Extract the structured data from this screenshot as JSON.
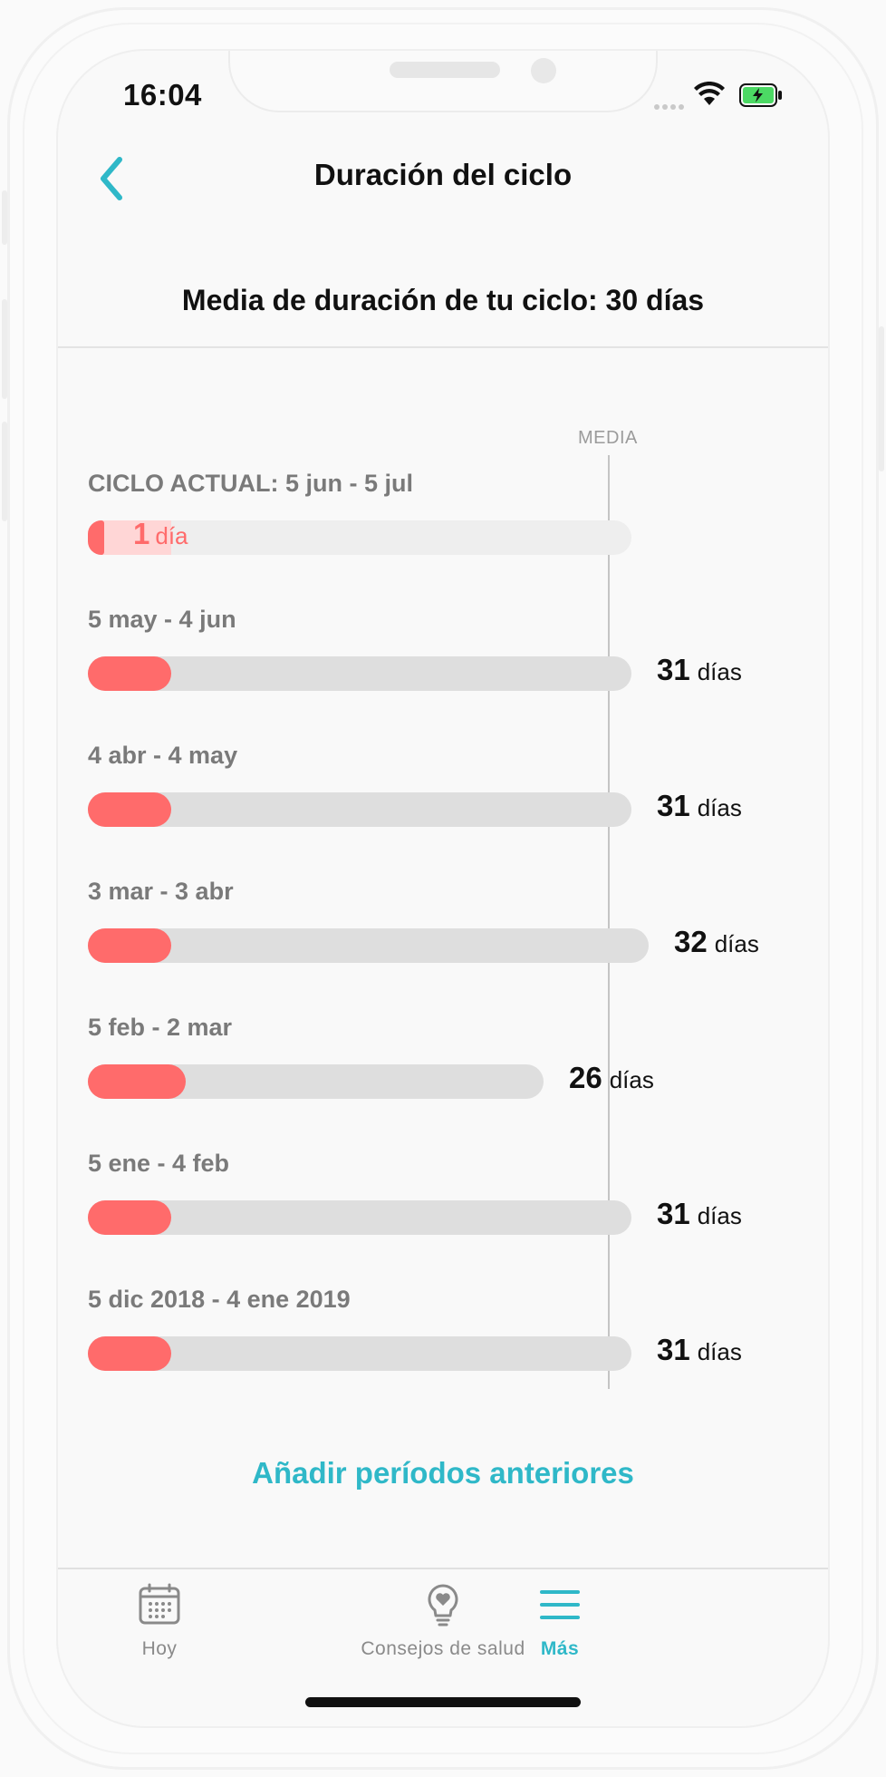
{
  "status_bar": {
    "time": "16:04"
  },
  "nav": {
    "title": "Duración del ciclo"
  },
  "summary": "Media de duración de tu ciclo: 30 días",
  "chart": {
    "average_label": "MEDIA",
    "average_days": 30,
    "scale_max_days": 40
  },
  "current_cycle": {
    "label": "CICLO ACTUAL: 5 jun - 5 jul",
    "days": 1,
    "num": "1",
    "unit": "día"
  },
  "cycles": [
    {
      "label": "5 may - 4 jun",
      "days": 31,
      "num": "31",
      "unit": "días"
    },
    {
      "label": "4 abr - 4 may",
      "days": 31,
      "num": "31",
      "unit": "días"
    },
    {
      "label": "3 mar - 3 abr",
      "days": 32,
      "num": "32",
      "unit": "días"
    },
    {
      "label": "5 feb - 2 mar",
      "days": 26,
      "num": "26",
      "unit": "días"
    },
    {
      "label": "5 ene - 4 feb",
      "days": 31,
      "num": "31",
      "unit": "días"
    },
    {
      "label": "5 dic 2018 - 4 ene 2019",
      "days": 31,
      "num": "31",
      "unit": "días"
    }
  ],
  "add_link": "Añadir períodos anteriores",
  "tabs": [
    {
      "label": "Hoy",
      "icon": "calendar-icon",
      "active": false
    },
    {
      "label": "Consejos de salud",
      "icon": "lightbulb-heart-icon",
      "active": false
    },
    {
      "label": "Más",
      "icon": "menu-icon",
      "active": true
    }
  ],
  "colors": {
    "accent": "#2fb8c8",
    "period": "#ff6b6b",
    "track": "#dedede"
  }
}
